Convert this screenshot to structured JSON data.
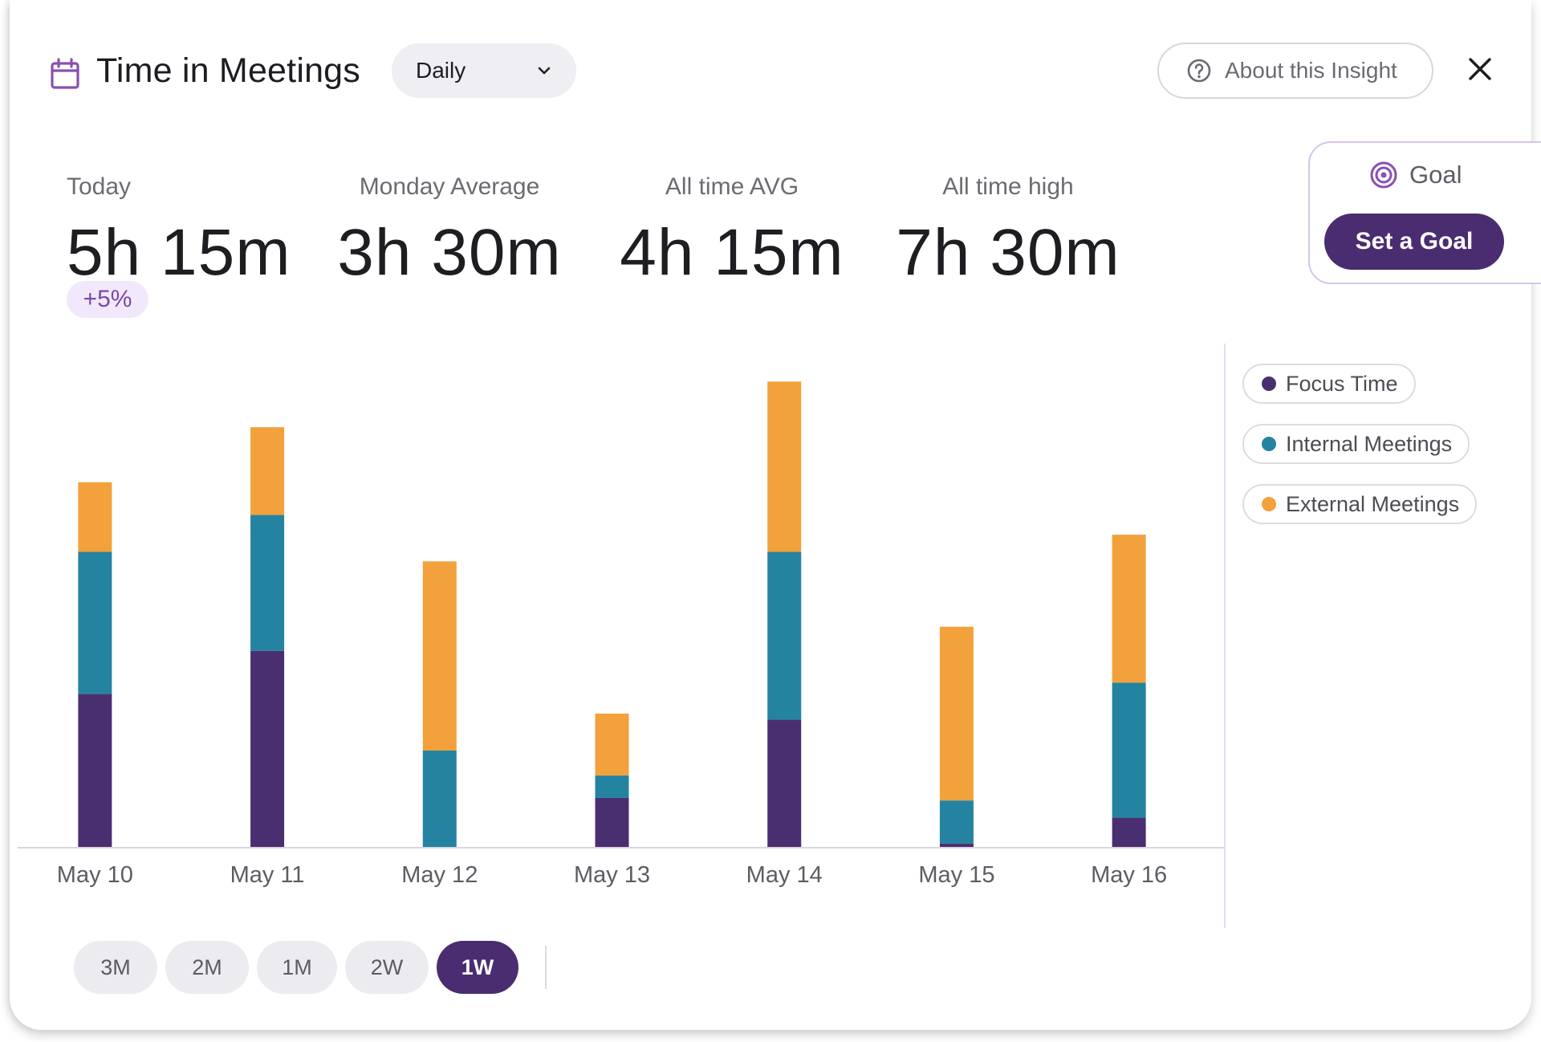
{
  "header": {
    "title": "Time in Meetings",
    "period_select": {
      "value": "Daily"
    },
    "about_label": "About this Insight"
  },
  "stats": [
    {
      "label": "Today",
      "value": "5h 15m"
    },
    {
      "label": "Monday Average",
      "value": "3h 30m"
    },
    {
      "label": "All time AVG",
      "value": "4h 15m"
    },
    {
      "label": "All time high",
      "value": "7h 30m"
    }
  ],
  "badge": "+5%",
  "goal": {
    "label": "Goal",
    "button_label": "Set a Goal"
  },
  "legend": [
    {
      "label": "Focus Time",
      "color": "#4a2f70"
    },
    {
      "label": "Internal Meetings",
      "color": "#2483a0"
    },
    {
      "label": "External Meetings",
      "color": "#f2a13c"
    }
  ],
  "ranges": [
    {
      "label": "3M",
      "active": false
    },
    {
      "label": "2M",
      "active": false
    },
    {
      "label": "1M",
      "active": false
    },
    {
      "label": "2W",
      "active": false
    },
    {
      "label": "1W",
      "active": true
    }
  ],
  "chart_data": {
    "type": "bar",
    "stacked": true,
    "categories": [
      "May 10",
      "May 11",
      "May 12",
      "May 13",
      "May 14",
      "May 15",
      "May 16"
    ],
    "series": [
      {
        "name": "Focus Time",
        "color": "#4a2f70",
        "values": [
          178,
          228,
          0,
          57,
          148,
          4,
          34
        ]
      },
      {
        "name": "Internal Meetings",
        "color": "#2483a0",
        "values": [
          165,
          158,
          112,
          26,
          195,
          50,
          157
        ]
      },
      {
        "name": "External Meetings",
        "color": "#f2a13c",
        "values": [
          81,
          102,
          220,
          72,
          198,
          202,
          172
        ]
      }
    ],
    "ylim": [
      0,
      560
    ],
    "title": "",
    "xlabel": "",
    "ylabel": "",
    "grid": false,
    "legend_position": "right"
  }
}
